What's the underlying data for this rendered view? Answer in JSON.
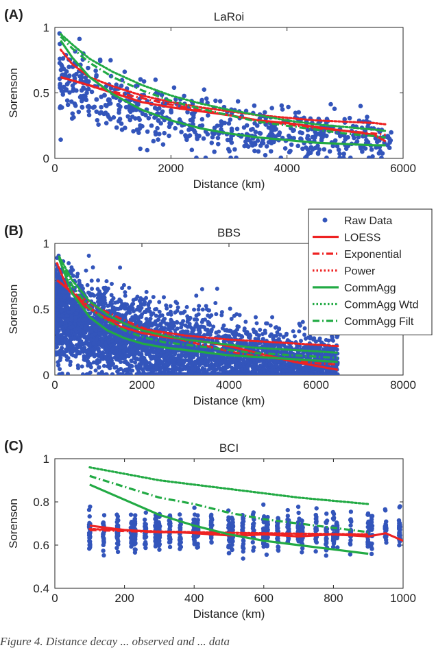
{
  "legend": {
    "entries": [
      {
        "label": "Raw Data",
        "color": "#3355bb",
        "style": "marker"
      },
      {
        "label": "LOESS",
        "color": "#ee2222",
        "style": "solid"
      },
      {
        "label": "Exponential",
        "color": "#ee2222",
        "style": "dashdot"
      },
      {
        "label": "Power",
        "color": "#ee2222",
        "style": "dotted"
      },
      {
        "label": "CommAgg",
        "color": "#22aa44",
        "style": "solid"
      },
      {
        "label": "CommAgg Wtd",
        "color": "#22aa44",
        "style": "dotted"
      },
      {
        "label": "CommAgg Filt",
        "color": "#22aa44",
        "style": "dashdot"
      }
    ],
    "placement": "right of panel B, overlapping panel A bottom"
  },
  "caption": "Figure 4. Distance decay ... observed and ... data",
  "chart_data": [
    {
      "type": "scatter",
      "panel_label": "(A)",
      "title": "LaRoi",
      "xlabel": "Distance (km)",
      "ylabel": "Sorenson",
      "xlim": [
        0,
        6000
      ],
      "ylim": [
        0,
        1
      ],
      "xticks": [
        "0",
        "2000",
        "4000",
        "6000"
      ],
      "yticks": [
        "0",
        "0.5",
        "1"
      ],
      "scatter_color": "#3355bb",
      "raw_points": {
        "count": 650,
        "x_range": [
          80,
          5800
        ],
        "y_center_at_start": 0.6,
        "y_center_at_end": 0.13,
        "y_spread": 0.13
      },
      "series": [
        {
          "name": "LOESS",
          "color": "#ee2222",
          "style": "solid",
          "x": [
            100,
            500,
            1000,
            1500,
            2000,
            2500,
            3000,
            3500,
            4000,
            4500,
            5000,
            5500,
            5700
          ],
          "y": [
            0.62,
            0.57,
            0.5,
            0.43,
            0.39,
            0.36,
            0.33,
            0.29,
            0.27,
            0.24,
            0.21,
            0.18,
            0.13
          ]
        },
        {
          "name": "Exponential",
          "color": "#ee2222",
          "style": "dashdot",
          "x": [
            100,
            500,
            1000,
            1500,
            2000,
            2500,
            3000,
            3500,
            4000,
            4500,
            5000,
            5500,
            5700
          ],
          "y": [
            0.62,
            0.57,
            0.51,
            0.46,
            0.41,
            0.37,
            0.33,
            0.29,
            0.26,
            0.23,
            0.21,
            0.19,
            0.18
          ]
        },
        {
          "name": "Power",
          "color": "#ee2222",
          "style": "dotted",
          "x": [
            100,
            300,
            600,
            1000,
            1500,
            2000,
            2500,
            3000,
            3500,
            4000,
            4500,
            5000,
            5500,
            5700
          ],
          "y": [
            0.83,
            0.72,
            0.62,
            0.55,
            0.48,
            0.43,
            0.39,
            0.36,
            0.33,
            0.31,
            0.29,
            0.28,
            0.27,
            0.26
          ]
        },
        {
          "name": "CommAgg",
          "color": "#22aa44",
          "style": "solid",
          "x": [
            100,
            300,
            600,
            1000,
            1500,
            2000,
            2500,
            3000,
            3500,
            4000,
            4500,
            5000,
            5500,
            5700
          ],
          "y": [
            0.9,
            0.77,
            0.62,
            0.49,
            0.37,
            0.29,
            0.23,
            0.19,
            0.16,
            0.14,
            0.12,
            0.11,
            0.1,
            0.1
          ]
        },
        {
          "name": "CommAgg Wtd",
          "color": "#22aa44",
          "style": "dotted",
          "x": [
            100,
            300,
            600,
            1000,
            1500,
            2000,
            2500,
            3000,
            3500,
            4000,
            4500,
            5000,
            5500,
            5700
          ],
          "y": [
            0.95,
            0.87,
            0.76,
            0.66,
            0.56,
            0.48,
            0.42,
            0.37,
            0.33,
            0.29,
            0.26,
            0.24,
            0.22,
            0.21
          ]
        },
        {
          "name": "CommAgg Filt",
          "color": "#22aa44",
          "style": "dashdot",
          "x": [
            100,
            300,
            600,
            1000,
            1500,
            2000,
            2500,
            3000,
            3500,
            4000,
            4500,
            5000,
            5500,
            5700
          ],
          "y": [
            0.93,
            0.84,
            0.73,
            0.62,
            0.52,
            0.44,
            0.38,
            0.33,
            0.28,
            0.25,
            0.22,
            0.19,
            0.17,
            0.16
          ]
        }
      ]
    },
    {
      "type": "scatter",
      "panel_label": "(B)",
      "title": "BBS",
      "xlabel": "Distance (km)",
      "ylabel": "Sorenson",
      "xlim": [
        0,
        8000
      ],
      "ylim": [
        0,
        1
      ],
      "xticks": [
        "0",
        "2000",
        "4000",
        "6000",
        "8000"
      ],
      "yticks": [
        "0",
        "0.5",
        "1"
      ],
      "scatter_color": "#3355bb",
      "raw_points": {
        "count": 4200,
        "x_range": [
          10,
          6500
        ],
        "y_center_at_start": 0.5,
        "y_center_at_end": 0.05,
        "y_spread": 0.18
      },
      "series": [
        {
          "name": "LOESS",
          "color": "#ee2222",
          "style": "solid",
          "x": [
            50,
            500,
            1000,
            1500,
            2000,
            2500,
            3000,
            3500,
            4000,
            4500,
            5000,
            5500,
            6000,
            6500
          ],
          "y": [
            0.72,
            0.6,
            0.46,
            0.37,
            0.32,
            0.29,
            0.27,
            0.25,
            0.22,
            0.18,
            0.14,
            0.1,
            0.07,
            0.04
          ]
        },
        {
          "name": "Exponential",
          "color": "#ee2222",
          "style": "dashdot",
          "x": [
            50,
            500,
            1000,
            1500,
            2000,
            2500,
            3000,
            3500,
            4000,
            4500,
            5000,
            5500,
            6000,
            6500
          ],
          "y": [
            0.72,
            0.61,
            0.51,
            0.43,
            0.36,
            0.31,
            0.26,
            0.22,
            0.18,
            0.15,
            0.13,
            0.11,
            0.09,
            0.08
          ]
        },
        {
          "name": "Power",
          "color": "#ee2222",
          "style": "dotted",
          "x": [
            50,
            300,
            700,
            1200,
            2000,
            3000,
            4000,
            5000,
            6000,
            6500
          ],
          "y": [
            0.85,
            0.65,
            0.52,
            0.43,
            0.35,
            0.3,
            0.27,
            0.25,
            0.23,
            0.22
          ]
        },
        {
          "name": "CommAgg",
          "color": "#22aa44",
          "style": "solid",
          "x": [
            100,
            400,
            800,
            1200,
            1600,
            2000,
            2500,
            3000,
            3500,
            4000,
            4500,
            5000,
            5500,
            6000,
            6500
          ],
          "y": [
            0.88,
            0.62,
            0.44,
            0.34,
            0.28,
            0.24,
            0.21,
            0.19,
            0.17,
            0.15,
            0.14,
            0.13,
            0.12,
            0.11,
            0.1
          ]
        },
        {
          "name": "CommAgg Wtd",
          "color": "#22aa44",
          "style": "dotted",
          "x": [
            100,
            400,
            800,
            1200,
            1600,
            2000,
            2500,
            3000,
            3500,
            4000,
            4500,
            5000,
            5500,
            6000,
            6500
          ],
          "y": [
            0.9,
            0.72,
            0.56,
            0.46,
            0.39,
            0.34,
            0.3,
            0.27,
            0.25,
            0.23,
            0.21,
            0.2,
            0.19,
            0.18,
            0.17
          ]
        },
        {
          "name": "CommAgg Filt",
          "color": "#22aa44",
          "style": "dashdot",
          "x": [
            100,
            400,
            800,
            1200,
            1600,
            2000,
            2500,
            3000,
            3500,
            4000,
            4500,
            5000,
            5500,
            6000,
            6500
          ],
          "y": [
            0.89,
            0.68,
            0.51,
            0.41,
            0.34,
            0.29,
            0.25,
            0.23,
            0.21,
            0.19,
            0.17,
            0.16,
            0.15,
            0.14,
            0.13
          ]
        }
      ]
    },
    {
      "type": "scatter",
      "panel_label": "(C)",
      "title": "BCI",
      "xlabel": "Distance (km)",
      "ylabel": "Sorenson",
      "xlim": [
        0,
        1000
      ],
      "ylim": [
        0.4,
        1
      ],
      "xticks": [
        "0",
        "200",
        "400",
        "600",
        "800",
        "1000"
      ],
      "yticks": [
        "0.4",
        "0.6",
        "0.8",
        "1"
      ],
      "scatter_color": "#3355bb",
      "raw_points": {
        "columns_x": [
          100,
          140,
          180,
          220,
          230,
          260,
          290,
          300,
          330,
          360,
          400,
          410,
          450,
          500,
          510,
          540,
          570,
          600,
          610,
          640,
          670,
          700,
          710,
          750,
          780,
          800,
          810,
          850,
          900,
          910,
          950,
          990
        ],
        "y_center": 0.66,
        "y_spread": 0.07
      },
      "series": [
        {
          "name": "LOESS",
          "color": "#ee2222",
          "style": "solid",
          "x": [
            100,
            150,
            200,
            250,
            300,
            350,
            400,
            450,
            500,
            550,
            600,
            650,
            700,
            750,
            800,
            850,
            900,
            950,
            1000
          ],
          "y": [
            0.69,
            0.68,
            0.67,
            0.665,
            0.66,
            0.66,
            0.655,
            0.65,
            0.645,
            0.645,
            0.65,
            0.645,
            0.64,
            0.645,
            0.65,
            0.645,
            0.64,
            0.655,
            0.62
          ]
        },
        {
          "name": "Exponential",
          "color": "#ee2222",
          "style": "dashdot",
          "x": [
            100,
            200,
            300,
            400,
            500,
            600,
            700,
            800,
            900
          ],
          "y": [
            0.67,
            0.665,
            0.66,
            0.658,
            0.655,
            0.652,
            0.65,
            0.648,
            0.645
          ]
        },
        {
          "name": "Power",
          "color": "#ee2222",
          "style": "dotted",
          "x": [
            100,
            200,
            300,
            400,
            500,
            600,
            700,
            800,
            900
          ],
          "y": [
            0.675,
            0.668,
            0.663,
            0.66,
            0.657,
            0.655,
            0.653,
            0.651,
            0.65
          ]
        },
        {
          "name": "CommAgg",
          "color": "#22aa44",
          "style": "solid",
          "x": [
            100,
            200,
            300,
            400,
            500,
            600,
            700,
            800,
            900
          ],
          "y": [
            0.88,
            0.81,
            0.74,
            0.69,
            0.65,
            0.62,
            0.6,
            0.58,
            0.56
          ]
        },
        {
          "name": "CommAgg Wtd",
          "color": "#22aa44",
          "style": "dotted",
          "x": [
            100,
            200,
            300,
            400,
            500,
            600,
            700,
            800,
            900
          ],
          "y": [
            0.96,
            0.93,
            0.9,
            0.88,
            0.86,
            0.84,
            0.82,
            0.805,
            0.79
          ]
        },
        {
          "name": "CommAgg Filt",
          "color": "#22aa44",
          "style": "dashdot",
          "x": [
            100,
            200,
            300,
            400,
            500,
            600,
            700,
            800,
            900
          ],
          "y": [
            0.92,
            0.87,
            0.82,
            0.79,
            0.75,
            0.72,
            0.7,
            0.68,
            0.66
          ]
        }
      ]
    }
  ]
}
